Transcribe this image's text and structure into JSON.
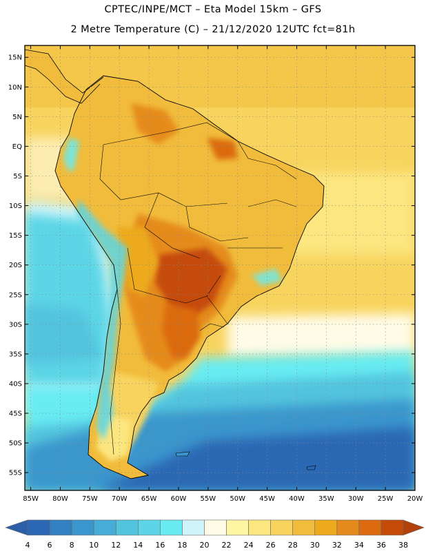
{
  "header": {
    "line1": "CPTEC/INPE/MCT  –   Eta Model 15km  –  GFS",
    "line2": "2 Metre Temperature (C) – 21/12/2020 12UTC fct=81h"
  },
  "map": {
    "lat_labels": [
      "15N",
      "10N",
      "5N",
      "EQ",
      "5S",
      "10S",
      "15S",
      "20S",
      "25S",
      "30S",
      "35S",
      "40S",
      "45S",
      "50S",
      "55S"
    ],
    "lat_values": [
      15,
      10,
      5,
      0,
      -5,
      -10,
      -15,
      -20,
      -25,
      -30,
      -35,
      -40,
      -45,
      -50,
      -55
    ],
    "lon_labels": [
      "85W",
      "80W",
      "75W",
      "70W",
      "65W",
      "60W",
      "55W",
      "50W",
      "45W",
      "40W",
      "35W",
      "30W",
      "25W",
      "20W"
    ],
    "lon_values": [
      -85,
      -80,
      -75,
      -70,
      -65,
      -60,
      -55,
      -50,
      -45,
      -40,
      -35,
      -30,
      -25,
      -20
    ],
    "lat_range": [
      -58,
      17
    ],
    "lon_range": [
      -86,
      -20
    ]
  },
  "colorbar": {
    "labels": [
      "4",
      "6",
      "8",
      "10",
      "12",
      "14",
      "16",
      "18",
      "20",
      "22",
      "24",
      "26",
      "28",
      "30",
      "32",
      "34",
      "36",
      "38"
    ],
    "colors": [
      "#2a67b4",
      "#3380c2",
      "#3a96cc",
      "#46aed6",
      "#52c4de",
      "#5cd6e6",
      "#68ecf2",
      "#cff4fa",
      "#fffbe6",
      "#fef6a2",
      "#fce680",
      "#f8d45f",
      "#f1bc3b",
      "#ecaa1c",
      "#e58b1e",
      "#db6a10",
      "#c54c08"
    ],
    "under_color": "#2d5fa8",
    "over_color": "#b1400a"
  }
}
